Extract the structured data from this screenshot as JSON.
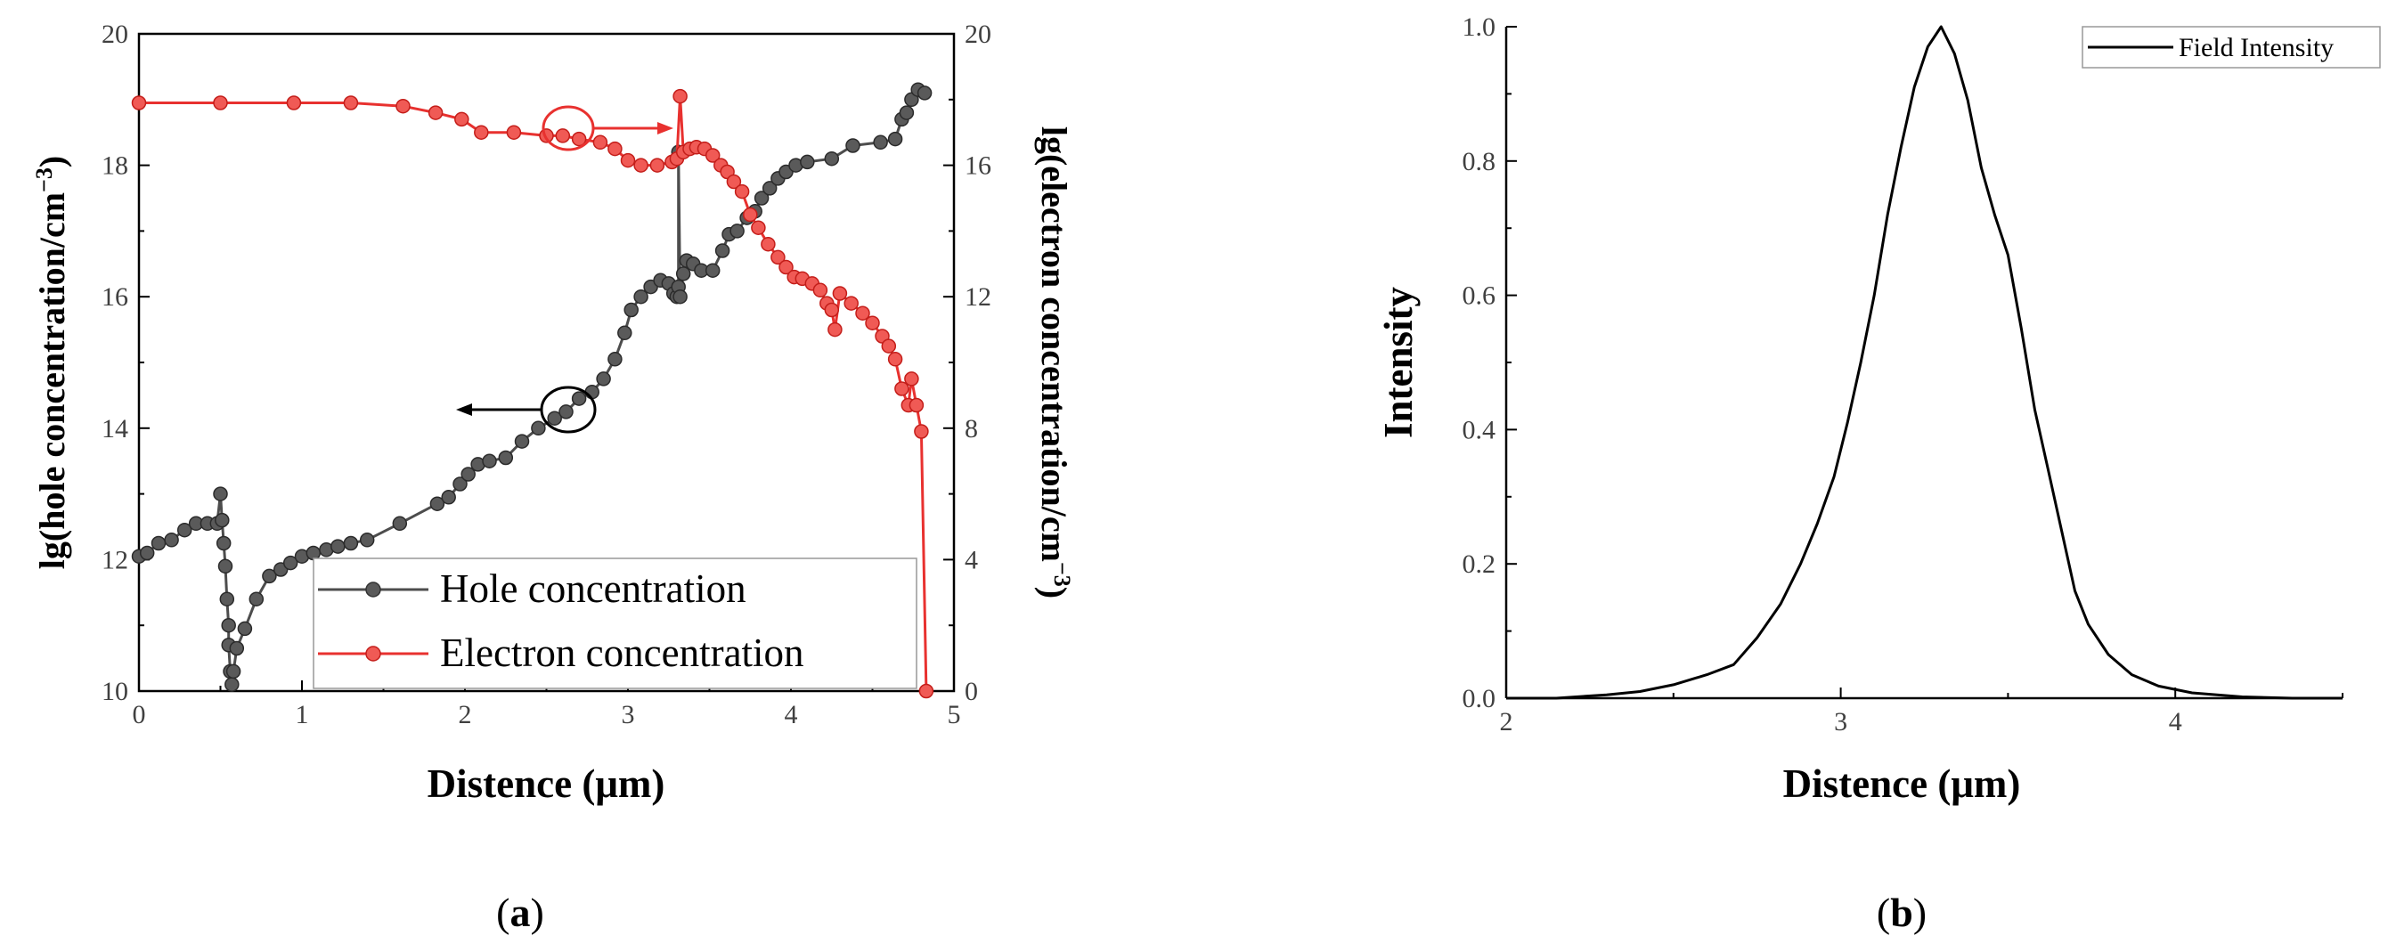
{
  "chart_data": [
    {
      "panel_label": "a",
      "type": "line",
      "xlabel": "Distence (μm)",
      "ylabel_left": "lg(hole concentration/cm",
      "ylabel_left_exp": "−3",
      "ylabel_left_close": ")",
      "ylabel_right": "lg(electron concentration/cm",
      "ylabel_right_exp": "−3",
      "ylabel_right_close": ")",
      "xlim": [
        0,
        5
      ],
      "ylim_left": [
        10,
        20
      ],
      "ylim_right": [
        0,
        20
      ],
      "xticks": [
        "0",
        "1",
        "2",
        "3",
        "4",
        "5"
      ],
      "yticks_left": [
        "10",
        "12",
        "14",
        "16",
        "18",
        "20"
      ],
      "yticks_right": [
        "0",
        "4",
        "8",
        "12",
        "16",
        "20"
      ],
      "legend": [
        "Hole concentration",
        "Electron concentration"
      ],
      "colors": {
        "hole": "#4d4d4d",
        "electron": "#e8312f"
      },
      "series": [
        {
          "name": "Hole concentration",
          "axis": "left",
          "x": [
            0,
            0.05,
            0.12,
            0.2,
            0.28,
            0.35,
            0.42,
            0.48,
            0.5,
            0.51,
            0.52,
            0.53,
            0.54,
            0.55,
            0.55,
            0.56,
            0.57,
            0.58,
            0.6,
            0.65,
            0.72,
            0.8,
            0.87,
            0.93,
            1.0,
            1.07,
            1.15,
            1.22,
            1.3,
            1.4,
            1.6,
            1.83,
            1.9,
            1.97,
            2.02,
            2.08,
            2.15,
            2.25,
            2.35,
            2.45,
            2.55,
            2.62,
            2.7,
            2.78,
            2.85,
            2.92,
            2.98,
            3.02,
            3.08,
            3.14,
            3.2,
            3.25,
            3.28,
            3.3,
            3.31,
            3.31,
            3.32,
            3.34,
            3.36,
            3.4,
            3.45,
            3.52,
            3.58,
            3.62,
            3.67,
            3.73,
            3.78,
            3.82,
            3.87,
            3.92,
            3.97,
            4.03,
            4.1,
            4.25,
            4.38,
            4.55,
            4.64,
            4.68,
            4.71,
            4.74,
            4.78,
            4.82
          ],
          "values": [
            12.05,
            12.1,
            12.25,
            12.3,
            12.45,
            12.55,
            12.55,
            12.55,
            13.0,
            12.6,
            12.25,
            11.9,
            11.4,
            11.0,
            10.7,
            10.3,
            10.1,
            10.3,
            10.65,
            10.95,
            11.4,
            11.75,
            11.85,
            11.95,
            12.05,
            12.1,
            12.15,
            12.2,
            12.25,
            12.3,
            12.55,
            12.85,
            12.95,
            13.15,
            13.3,
            13.45,
            13.5,
            13.55,
            13.8,
            14.0,
            14.15,
            14.25,
            14.45,
            14.55,
            14.75,
            15.05,
            15.45,
            15.8,
            16.0,
            16.15,
            16.25,
            16.2,
            16.05,
            16.0,
            16.15,
            18.2,
            16.0,
            16.35,
            16.55,
            16.5,
            16.4,
            16.4,
            16.7,
            16.95,
            17.0,
            17.2,
            17.3,
            17.5,
            17.65,
            17.8,
            17.9,
            18.0,
            18.05,
            18.1,
            18.3,
            18.35,
            18.4,
            18.7,
            18.8,
            19.0,
            19.15,
            19.1
          ]
        },
        {
          "name": "Electron concentration",
          "axis": "right",
          "x": [
            0,
            0.5,
            0.95,
            1.3,
            1.62,
            1.82,
            1.98,
            2.1,
            2.3,
            2.5,
            2.6,
            2.7,
            2.83,
            2.92,
            3.0,
            3.08,
            3.18,
            3.27,
            3.3,
            3.32,
            3.34,
            3.38,
            3.42,
            3.47,
            3.52,
            3.57,
            3.61,
            3.65,
            3.7,
            3.75,
            3.8,
            3.86,
            3.92,
            3.97,
            4.02,
            4.07,
            4.13,
            4.18,
            4.22,
            4.25,
            4.27,
            4.3,
            4.37,
            4.44,
            4.5,
            4.56,
            4.6,
            4.64,
            4.68,
            4.72,
            4.74,
            4.77,
            4.8,
            4.83
          ],
          "values": [
            17.9,
            17.9,
            17.9,
            17.9,
            17.8,
            17.6,
            17.4,
            17.0,
            17.0,
            16.9,
            16.9,
            16.8,
            16.7,
            16.5,
            16.15,
            16.0,
            16.0,
            16.1,
            16.2,
            18.1,
            16.4,
            16.5,
            16.55,
            16.5,
            16.3,
            16.0,
            15.8,
            15.5,
            15.2,
            14.5,
            14.1,
            13.6,
            13.2,
            12.9,
            12.6,
            12.55,
            12.4,
            12.2,
            11.8,
            11.6,
            11.0,
            12.1,
            11.8,
            11.5,
            11.2,
            10.8,
            10.5,
            10.1,
            9.2,
            8.7,
            9.5,
            8.7,
            7.9,
            0.0
          ]
        }
      ],
      "annotations": [
        "arrow-left-to-hole-axis",
        "arrow-right-to-electron-axis"
      ]
    },
    {
      "panel_label": "b",
      "type": "line",
      "xlabel": "Distence (μm)",
      "ylabel": "Intensity",
      "xlim": [
        2,
        4.5
      ],
      "ylim": [
        0,
        1.0
      ],
      "xticks": [
        "2",
        "3",
        "4"
      ],
      "yticks": [
        "0.0",
        "0.2",
        "0.4",
        "0.6",
        "0.8",
        "1.0"
      ],
      "legend": [
        "Field Intensity"
      ],
      "colors": {
        "line": "#000000"
      },
      "series": [
        {
          "name": "Field Intensity",
          "x": [
            2.0,
            2.15,
            2.3,
            2.4,
            2.5,
            2.6,
            2.68,
            2.75,
            2.82,
            2.88,
            2.93,
            2.98,
            3.02,
            3.06,
            3.1,
            3.14,
            3.18,
            3.22,
            3.26,
            3.3,
            3.34,
            3.38,
            3.42,
            3.46,
            3.5,
            3.54,
            3.58,
            3.62,
            3.66,
            3.7,
            3.74,
            3.8,
            3.87,
            3.95,
            4.05,
            4.2,
            4.35,
            4.5
          ],
          "values": [
            0.0,
            0.0,
            0.005,
            0.01,
            0.02,
            0.035,
            0.05,
            0.09,
            0.14,
            0.2,
            0.26,
            0.33,
            0.41,
            0.5,
            0.6,
            0.72,
            0.82,
            0.91,
            0.97,
            1.0,
            0.96,
            0.89,
            0.79,
            0.72,
            0.66,
            0.55,
            0.43,
            0.34,
            0.25,
            0.16,
            0.11,
            0.065,
            0.035,
            0.018,
            0.008,
            0.002,
            0.0,
            0.0
          ]
        }
      ]
    }
  ]
}
